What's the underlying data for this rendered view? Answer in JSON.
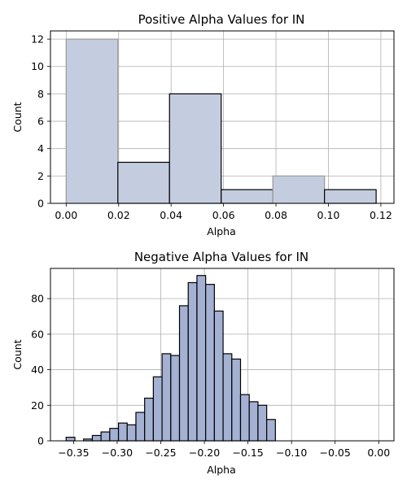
{
  "chart_data": [
    {
      "type": "bar",
      "title": "Positive Alpha Values for IN",
      "xlabel": "Alpha",
      "ylabel": "Count",
      "xlim": [
        -0.006,
        0.125
      ],
      "ylim": [
        0,
        12.6
      ],
      "xticks": [
        0.0,
        0.02,
        0.04,
        0.06,
        0.08,
        0.1,
        0.12
      ],
      "xtick_labels": [
        "0.00",
        "0.02",
        "0.04",
        "0.06",
        "0.08",
        "0.10",
        "0.12"
      ],
      "yticks": [
        0,
        2,
        4,
        6,
        8,
        10,
        12
      ],
      "ytick_labels": [
        "0",
        "2",
        "4",
        "6",
        "8",
        "10",
        "12"
      ],
      "grid": true,
      "bar_color": "#c4cde0",
      "edge_colors": [
        "#999999",
        "#000000",
        "#000000",
        "#000000",
        "#999999",
        "#000000"
      ],
      "bins": [
        {
          "x0": 0.0,
          "x1": 0.0197,
          "count": 12
        },
        {
          "x0": 0.0197,
          "x1": 0.0394,
          "count": 3
        },
        {
          "x0": 0.0394,
          "x1": 0.0591,
          "count": 8
        },
        {
          "x0": 0.0591,
          "x1": 0.0788,
          "count": 1
        },
        {
          "x0": 0.0788,
          "x1": 0.0985,
          "count": 2
        },
        {
          "x0": 0.0985,
          "x1": 0.1182,
          "count": 1
        }
      ]
    },
    {
      "type": "bar",
      "title": "Negative Alpha Values for IN",
      "xlabel": "Alpha",
      "ylabel": "Count",
      "xlim": [
        -0.3765,
        0.0175
      ],
      "ylim": [
        0,
        97
      ],
      "xticks": [
        -0.35,
        -0.3,
        -0.25,
        -0.2,
        -0.15,
        -0.1,
        -0.05,
        0.0
      ],
      "xtick_labels": [
        "−0.35",
        "−0.30",
        "−0.25",
        "−0.20",
        "−0.15",
        "−0.10",
        "−0.05",
        "0.00"
      ],
      "yticks": [
        0,
        20,
        40,
        60,
        80
      ],
      "ytick_labels": [
        "0",
        "20",
        "40",
        "60",
        "80"
      ],
      "grid": true,
      "bar_color": "#a4b1d3",
      "bin_start": -0.3585,
      "bin_width": 0.01,
      "counts": [
        2,
        0,
        1,
        3,
        5,
        7,
        10,
        9,
        16,
        24,
        36,
        49,
        48,
        76,
        89,
        93,
        88,
        73,
        49,
        46,
        26,
        22,
        20,
        12
      ]
    }
  ]
}
